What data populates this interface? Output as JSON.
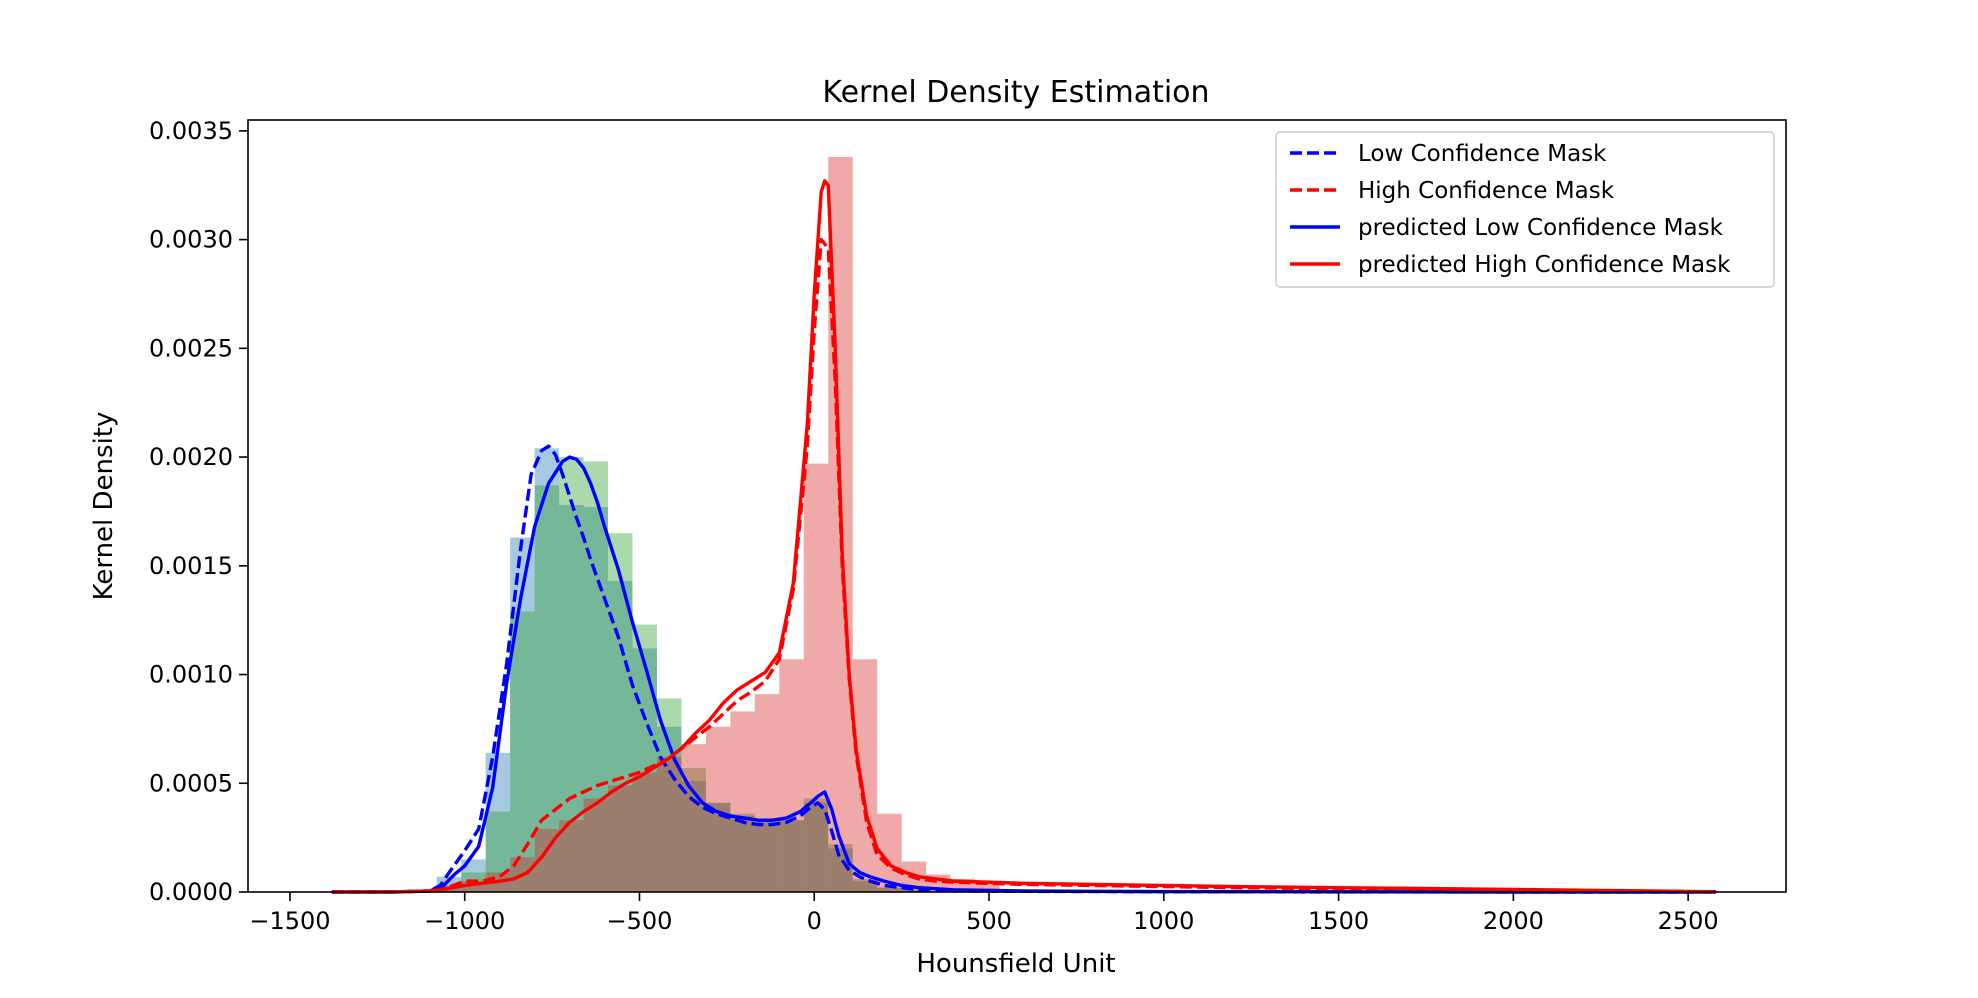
{
  "chart_data": {
    "type": "area",
    "title": "Kernel Density Estimation",
    "xlabel": "Hounsfield Unit",
    "ylabel": "Kernel Density",
    "xlim": [
      -1620,
      2780
    ],
    "ylim": [
      0,
      0.00355
    ],
    "x_ticks": [
      -1500,
      -1000,
      -500,
      0,
      500,
      1000,
      1500,
      2000,
      2500
    ],
    "x_tick_labels": [
      "−1500",
      "−1000",
      "−500",
      "0",
      "500",
      "1000",
      "1500",
      "2000",
      "2500"
    ],
    "y_ticks": [
      0,
      0.0005,
      0.001,
      0.0015,
      0.002,
      0.0025,
      0.003,
      0.0035
    ],
    "y_tick_labels": [
      "0.0000",
      "0.0005",
      "0.0010",
      "0.0015",
      "0.0020",
      "0.0025",
      "0.0030",
      "0.0035"
    ],
    "grid": false,
    "legend_position": "top-right",
    "histograms": [
      {
        "color": "#1f77b4",
        "bin_width": 70,
        "bins": [
          [
            -1045,
            7e-05
          ],
          [
            -975,
            0.00015
          ],
          [
            -905,
            0.00064
          ],
          [
            -835,
            0.00163
          ],
          [
            -765,
            0.00204
          ],
          [
            -695,
            0.00178
          ],
          [
            -625,
            0.00177
          ],
          [
            -555,
            0.00143
          ],
          [
            -485,
            0.00112
          ],
          [
            -415,
            0.00076
          ],
          [
            -345,
            0.00051
          ],
          [
            -275,
            0.00041
          ],
          [
            -205,
            0.00035
          ],
          [
            -135,
            0.00032
          ],
          [
            -65,
            0.00033
          ],
          [
            5,
            0.00041
          ],
          [
            75,
            0.0002
          ],
          [
            145,
            5e-05
          ],
          [
            215,
            2e-05
          ],
          [
            285,
            1e-05
          ]
        ]
      },
      {
        "color": "#2ca02c",
        "bin_width": 70,
        "bins": [
          [
            -1045,
            3e-05
          ],
          [
            -975,
            9e-05
          ],
          [
            -905,
            0.00037
          ],
          [
            -835,
            0.00129
          ],
          [
            -765,
            0.00187
          ],
          [
            -695,
            0.002
          ],
          [
            -625,
            0.00198
          ],
          [
            -555,
            0.00165
          ],
          [
            -485,
            0.00123
          ],
          [
            -415,
            0.00089
          ],
          [
            -345,
            0.00057
          ],
          [
            -275,
            0.00041
          ],
          [
            -205,
            0.00036
          ],
          [
            -135,
            0.00033
          ],
          [
            -65,
            0.00033
          ],
          [
            5,
            0.00043
          ],
          [
            75,
            0.00022
          ],
          [
            145,
            6e-05
          ],
          [
            215,
            2e-05
          ],
          [
            285,
            1e-05
          ]
        ]
      },
      {
        "color": "#d62728",
        "bin_width": 70,
        "bins": [
          [
            -1045,
            3e-05
          ],
          [
            -975,
            5e-05
          ],
          [
            -905,
            9e-05
          ],
          [
            -835,
            0.00016
          ],
          [
            -765,
            0.00029
          ],
          [
            -695,
            0.00033
          ],
          [
            -625,
            0.00043
          ],
          [
            -555,
            0.00049
          ],
          [
            -485,
            0.00055
          ],
          [
            -415,
            0.00062
          ],
          [
            -345,
            0.00068
          ],
          [
            -275,
            0.00076
          ],
          [
            -205,
            0.00083
          ],
          [
            -135,
            0.00091
          ],
          [
            -65,
            0.00107
          ],
          [
            5,
            0.00197
          ],
          [
            75,
            0.00338
          ],
          [
            145,
            0.00107
          ],
          [
            215,
            0.00036
          ],
          [
            285,
            0.00014
          ],
          [
            355,
            8e-05
          ],
          [
            425,
            6e-05
          ],
          [
            495,
            5e-05
          ]
        ]
      }
    ],
    "series": [
      {
        "name": "Low Confidence Mask",
        "color": "#0000ff",
        "dash": "dashed",
        "x": [
          -1380,
          -1200,
          -1100,
          -1070,
          -1040,
          -1000,
          -960,
          -920,
          -880,
          -840,
          -810,
          -780,
          -760,
          -740,
          -720,
          -700,
          -680,
          -660,
          -640,
          -620,
          -600,
          -580,
          -560,
          -520,
          -480,
          -440,
          -400,
          -360,
          -320,
          -280,
          -240,
          -200,
          -160,
          -120,
          -80,
          -40,
          -10,
          10,
          30,
          50,
          70,
          100,
          130,
          160,
          200,
          250,
          300,
          400,
          600,
          800,
          1000,
          1500,
          2000,
          2580
        ],
        "y": [
          0,
          0,
          5e-06,
          3e-05,
          0.0001,
          0.00019,
          0.00029,
          0.00062,
          0.00105,
          0.00158,
          0.00192,
          0.00203,
          0.00205,
          0.00201,
          0.00192,
          0.00182,
          0.00172,
          0.00163,
          0.00153,
          0.00144,
          0.00135,
          0.00126,
          0.00117,
          0.00095,
          0.00078,
          0.00062,
          0.00052,
          0.00044,
          0.00039,
          0.00036,
          0.00034,
          0.00032,
          0.00031,
          0.00031,
          0.00032,
          0.00035,
          0.00039,
          0.00041,
          0.00038,
          0.00028,
          0.00017,
          0.0001,
          7e-05,
          5e-05,
          3e-05,
          2e-05,
          1e-05,
          5e-06,
          3e-06,
          2e-06,
          1e-06,
          5e-07,
          0,
          0
        ]
      },
      {
        "name": "High Confidence Mask",
        "color": "#ff0000",
        "dash": "dashed",
        "x": [
          -1380,
          -1200,
          -1100,
          -1050,
          -1000,
          -950,
          -900,
          -860,
          -820,
          -780,
          -740,
          -700,
          -660,
          -620,
          -580,
          -540,
          -500,
          -460,
          -420,
          -380,
          -340,
          -300,
          -260,
          -220,
          -180,
          -140,
          -100,
          -60,
          -20,
          0,
          20,
          40,
          60,
          80,
          100,
          120,
          150,
          180,
          220,
          260,
          300,
          350,
          400,
          500,
          600,
          800,
          1000,
          1200,
          1500,
          1800,
          2100,
          2400,
          2580
        ],
        "y": [
          0,
          0,
          5e-06,
          2e-05,
          5e-05,
          5e-05,
          7e-05,
          0.00012,
          0.00022,
          0.00033,
          0.00038,
          0.00043,
          0.00046,
          0.00049,
          0.00051,
          0.00053,
          0.00055,
          0.00058,
          0.00061,
          0.00066,
          0.00071,
          0.00076,
          0.00082,
          0.00088,
          0.00092,
          0.00097,
          0.00107,
          0.00139,
          0.00205,
          0.00258,
          0.003,
          0.00296,
          0.00235,
          0.0015,
          0.00098,
          0.00063,
          0.00032,
          0.00017,
          0.00011,
          8e-05,
          6e-05,
          5e-05,
          4.5e-05,
          4e-05,
          3.5e-05,
          3e-05,
          2.5e-05,
          2e-05,
          1.5e-05,
          1e-05,
          6e-06,
          3e-06,
          1e-06
        ]
      },
      {
        "name": "predicted Low Confidence Mask",
        "color": "#0000ff",
        "dash": "solid",
        "x": [
          -1380,
          -1200,
          -1100,
          -1060,
          -1030,
          -1000,
          -960,
          -920,
          -880,
          -840,
          -800,
          -760,
          -720,
          -700,
          -680,
          -660,
          -640,
          -620,
          -600,
          -580,
          -560,
          -540,
          -520,
          -480,
          -440,
          -400,
          -360,
          -320,
          -280,
          -240,
          -200,
          -160,
          -120,
          -80,
          -40,
          -10,
          10,
          30,
          50,
          70,
          100,
          130,
          160,
          200,
          250,
          300,
          400,
          600,
          800,
          1000,
          1500,
          2000,
          2580
        ],
        "y": [
          0,
          0,
          5e-06,
          3e-05,
          8e-05,
          0.00012,
          0.00021,
          0.00048,
          0.00096,
          0.00135,
          0.00168,
          0.00188,
          0.00198,
          0.002,
          0.00199,
          0.00195,
          0.00188,
          0.00179,
          0.00168,
          0.00158,
          0.00148,
          0.00136,
          0.00124,
          0.00102,
          0.00079,
          0.00061,
          0.00049,
          0.00041,
          0.00037,
          0.00035,
          0.00034,
          0.00033,
          0.00033,
          0.00034,
          0.00037,
          0.00041,
          0.00044,
          0.00046,
          0.00038,
          0.00026,
          0.00013,
          9e-05,
          7e-05,
          5e-05,
          3e-05,
          2e-05,
          1e-05,
          5e-06,
          3e-06,
          2e-06,
          1e-06,
          0,
          0
        ]
      },
      {
        "name": "predicted High Confidence Mask",
        "color": "#ff0000",
        "dash": "solid",
        "x": [
          -1380,
          -1200,
          -1100,
          -1050,
          -1000,
          -950,
          -900,
          -860,
          -820,
          -780,
          -740,
          -700,
          -660,
          -620,
          -580,
          -540,
          -500,
          -460,
          -420,
          -380,
          -340,
          -300,
          -260,
          -220,
          -180,
          -140,
          -100,
          -60,
          -20,
          0,
          20,
          30,
          40,
          60,
          80,
          100,
          120,
          150,
          180,
          220,
          260,
          300,
          350,
          400,
          500,
          600,
          800,
          1000,
          1200,
          1500,
          1800,
          2100,
          2400,
          2580
        ],
        "y": [
          0,
          0,
          5e-06,
          1.5e-05,
          3e-05,
          4e-05,
          5e-05,
          6e-05,
          9e-05,
          0.00016,
          0.00025,
          0.00032,
          0.00037,
          0.00041,
          0.00046,
          0.0005,
          0.00053,
          0.00057,
          0.00061,
          0.00066,
          0.00073,
          0.00079,
          0.00087,
          0.00093,
          0.00097,
          0.00101,
          0.0011,
          0.00142,
          0.00215,
          0.00275,
          0.00322,
          0.00327,
          0.00325,
          0.0025,
          0.00155,
          0.001,
          0.00065,
          0.00035,
          0.0002,
          0.00012,
          9e-05,
          7e-05,
          6e-05,
          5e-05,
          4.5e-05,
          4e-05,
          3.5e-05,
          3e-05,
          2.5e-05,
          2e-05,
          1.5e-05,
          1e-05,
          5e-06,
          1e-06
        ]
      }
    ]
  }
}
